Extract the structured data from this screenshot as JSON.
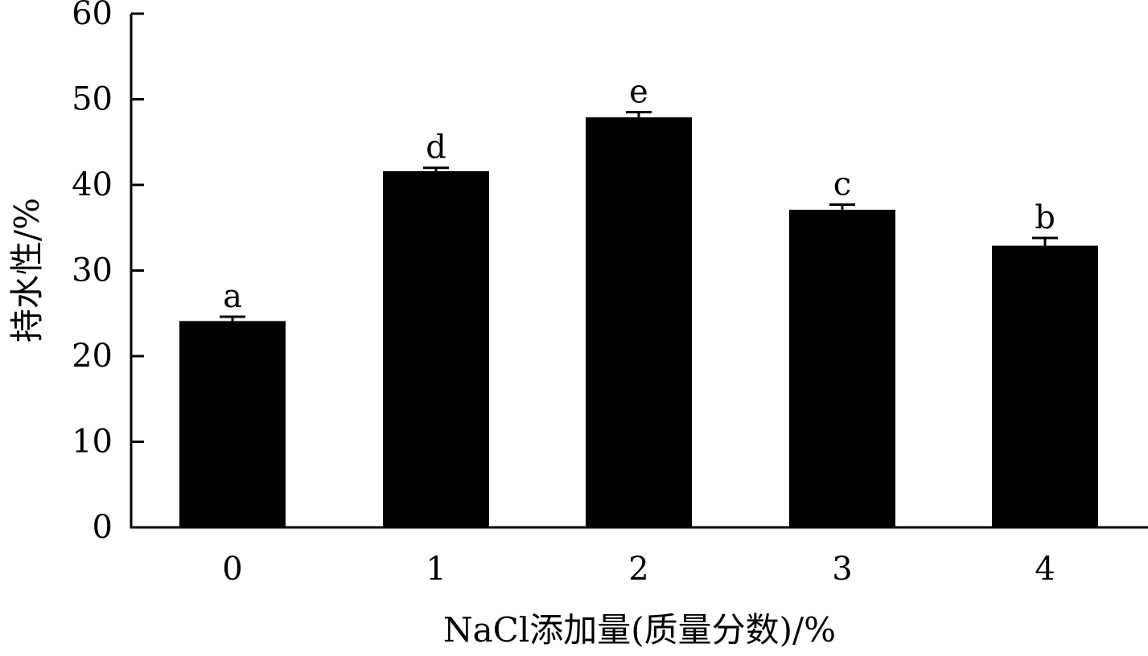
{
  "chart_data": {
    "type": "bar",
    "title": "",
    "xlabel": "NaCl添加量(质量分数)/%",
    "ylabel": "持水性/%",
    "categories": [
      "0",
      "1",
      "2",
      "3",
      "4"
    ],
    "values": [
      24.1,
      41.6,
      47.9,
      37.1,
      32.9
    ],
    "errors": [
      0.5,
      0.4,
      0.6,
      0.6,
      0.9
    ],
    "significance": [
      "a",
      "d",
      "e",
      "c",
      "b"
    ],
    "ylim": [
      0,
      60
    ],
    "yticks": [
      "0",
      "10",
      "20",
      "30",
      "40",
      "50",
      "60"
    ],
    "grid": false,
    "bar_color": "#000000"
  }
}
